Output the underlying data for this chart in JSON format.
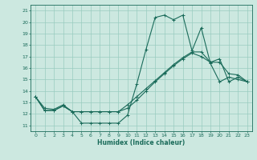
{
  "xlabel": "Humidex (Indice chaleur)",
  "bg_color": "#cce8e0",
  "grid_color": "#99ccc0",
  "line_color": "#1a6b5a",
  "xlim": [
    -0.5,
    23.5
  ],
  "ylim": [
    10.5,
    21.5
  ],
  "xticks": [
    0,
    1,
    2,
    3,
    4,
    5,
    6,
    7,
    8,
    9,
    10,
    11,
    12,
    13,
    14,
    15,
    16,
    17,
    18,
    19,
    20,
    21,
    22,
    23
  ],
  "yticks": [
    11,
    12,
    13,
    14,
    15,
    16,
    17,
    18,
    19,
    20,
    21
  ],
  "series": [
    [
      13.5,
      12.5,
      12.4,
      12.8,
      12.2,
      11.2,
      11.2,
      11.2,
      11.2,
      11.2,
      11.9,
      14.6,
      17.6,
      20.4,
      20.6,
      20.2,
      20.6,
      17.5,
      19.5,
      16.4,
      14.8,
      15.2,
      15.0,
      14.8
    ],
    [
      13.5,
      12.3,
      12.3,
      12.7,
      12.2,
      12.2,
      12.2,
      12.2,
      12.2,
      12.2,
      12.5,
      13.2,
      14.0,
      14.8,
      15.5,
      16.2,
      16.8,
      17.3,
      17.0,
      16.5,
      16.8,
      14.8,
      15.2,
      14.8
    ],
    [
      13.5,
      12.3,
      12.3,
      12.7,
      12.2,
      12.2,
      12.2,
      12.2,
      12.2,
      12.2,
      12.8,
      13.5,
      14.2,
      14.9,
      15.6,
      16.3,
      16.9,
      17.4,
      17.4,
      16.5,
      16.5,
      15.5,
      15.4,
      14.8
    ]
  ]
}
